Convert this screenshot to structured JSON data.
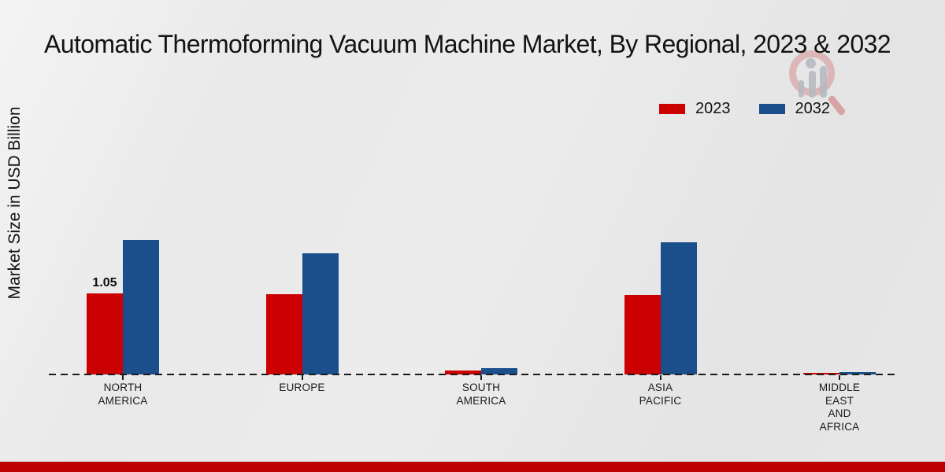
{
  "header": {
    "title": "Automatic Thermoforming Vacuum Machine Market, By Regional, 2023 & 2032"
  },
  "y_axis_label": "Market Size in USD Billion",
  "legend": {
    "items": [
      {
        "label": "2023",
        "color": "#cc0000"
      },
      {
        "label": "2032",
        "color": "#1a4f8c"
      }
    ]
  },
  "annotation": {
    "text": "1.05"
  },
  "colors": {
    "series_2023": "#cc0000",
    "series_2032": "#1a4f8c",
    "footer_bar": "#bf0000",
    "baseline": "#1a1a1a",
    "background": "#e9e9e9"
  },
  "icons": {
    "watermark": "magnifier-bar-chart-logo"
  },
  "chart_data": {
    "type": "bar",
    "title": "Automatic Thermoforming Vacuum Machine Market, By Regional, 2023 & 2032",
    "xlabel": "",
    "ylabel": "Market Size in USD Billion",
    "ylim": [
      0,
      2
    ],
    "grid": false,
    "legend_position": "top-right",
    "baseline_style": "dashed",
    "categories": [
      "NORTH AMERICA",
      "EUROPE",
      "SOUTH AMERICA",
      "ASIA PACIFIC",
      "MIDDLE EAST AND AFRICA"
    ],
    "category_display": [
      "NORTH\nAMERICA",
      "EUROPE",
      "SOUTH\nAMERICA",
      "ASIA\nPACIFIC",
      "MIDDLE\nEAST\nAND\nAFRICA"
    ],
    "series": [
      {
        "name": "2023",
        "color": "#cc0000",
        "values": [
          1.05,
          1.04,
          0.05,
          1.03,
          0.02
        ]
      },
      {
        "name": "2032",
        "color": "#1a4f8c",
        "values": [
          1.74,
          1.57,
          0.08,
          1.71,
          0.03
        ]
      }
    ],
    "data_labels": [
      {
        "category": "NORTH AMERICA",
        "series": "2023",
        "text": "1.05",
        "value": 1.05
      }
    ]
  }
}
